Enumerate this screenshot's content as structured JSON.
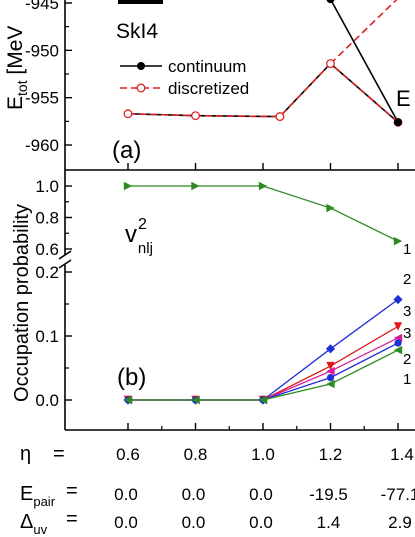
{
  "chart_data": [
    {
      "panel_label": "(a)",
      "type": "line",
      "ylabel": "E_tot [MeV]",
      "ylabel_main": "E",
      "ylabel_sub": "tot",
      "ylabel_unit": " [MeV",
      "force_label": "SkI4",
      "side_label": "E",
      "x": [
        0.6,
        0.8,
        1.0,
        1.2,
        1.4
      ],
      "ylim": [
        -963,
        -945
      ],
      "yticks": [
        "-945",
        "-950",
        "-955",
        "-960"
      ],
      "ytick_values": [
        -945,
        -950,
        -955,
        -960
      ],
      "legend": [
        "continuum",
        "discretized"
      ],
      "series": [
        {
          "name": "continuum",
          "x": [
            0.6,
            0.8,
            1.05,
            1.2,
            1.4
          ],
          "y": [
            -956.7,
            -956.9,
            -957.0,
            -951.4,
            -957.6
          ],
          "color": "#000000",
          "style": "solid",
          "marker": "filled-circle"
        },
        {
          "name": "discretized",
          "x": [
            0.6,
            0.8,
            1.05,
            1.2,
            1.4
          ],
          "y": [
            -956.7,
            -956.9,
            -957.0,
            -951.4,
            -957.6
          ],
          "color": "#e02020",
          "style": "dashed",
          "marker": "open-circle"
        },
        {
          "x": [
            1.2,
            1.4
          ],
          "y": [
            -944.6,
            -957.6
          ],
          "color": "#000000",
          "style": "solid",
          "marker": "filled-circle"
        },
        {
          "x": [
            1.2,
            1.4
          ],
          "y": [
            -951.4,
            -944.5
          ],
          "color": "#e02020",
          "style": "dashed",
          "marker": "none"
        }
      ]
    },
    {
      "panel_label": "(b)",
      "type": "line",
      "ylabel": "Occupation probability",
      "annotation": "v",
      "annotation_sup": "2",
      "annotation_sub": "nlj",
      "broken_axis": true,
      "x": [
        0.6,
        0.8,
        1.0,
        1.2,
        1.4
      ],
      "ylim_upper": [
        0.55,
        1.07
      ],
      "ylim_lower": [
        -0.03,
        0.23
      ],
      "yticks": [
        "1.0",
        "0.8",
        "0.6",
        "0.2",
        "0.1",
        "0.0"
      ],
      "ytick_values": [
        1.0,
        0.8,
        0.6,
        0.2,
        0.1,
        0.0
      ],
      "series": [
        {
          "end_label": "1",
          "y": [
            1.0,
            1.0,
            1.0,
            0.86,
            0.65
          ],
          "color": "#2e8b22",
          "marker": "triangle-right"
        },
        {
          "end_label": "2",
          "y": [
            0.0,
            0.0,
            0.0,
            0.08,
            0.157
          ],
          "color": "#1f2fd8",
          "marker": "diamond"
        },
        {
          "end_label": "3",
          "y": [
            0.0,
            0.0,
            0.0,
            0.053,
            0.115
          ],
          "color": "#e01818",
          "marker": "triangle-down"
        },
        {
          "end_label": "3",
          "y": [
            0.0,
            0.0,
            0.0,
            0.045,
            0.097
          ],
          "color": "#d81b9a",
          "marker": "triangle-left"
        },
        {
          "end_label": "2",
          "y": [
            0.0,
            0.0,
            0.0,
            0.035,
            0.089
          ],
          "color": "#1f2fd8",
          "marker": "circle"
        },
        {
          "end_label": "1",
          "y": [
            0.0,
            0.0,
            0.0,
            0.025,
            0.078
          ],
          "color": "#2e8b22",
          "marker": "triangle-left"
        }
      ],
      "table": {
        "rows": [
          {
            "label_main": "η",
            "label_sub": "",
            "eq": "=",
            "values": [
              "0.6",
              "0.8",
              "1.0",
              "1.2",
              "1.4"
            ]
          },
          {
            "label_main": "E",
            "label_sub": "pair",
            "eq": "=",
            "values": [
              "0.0",
              "0.0",
              "0.0",
              "-19.5",
              "-77.1"
            ]
          },
          {
            "label_main": "Δ",
            "label_sub": "uv",
            "eq": "=",
            "values": [
              "0.0",
              "0.0",
              "0.0",
              "1.4",
              "2.9"
            ]
          }
        ]
      }
    }
  ]
}
